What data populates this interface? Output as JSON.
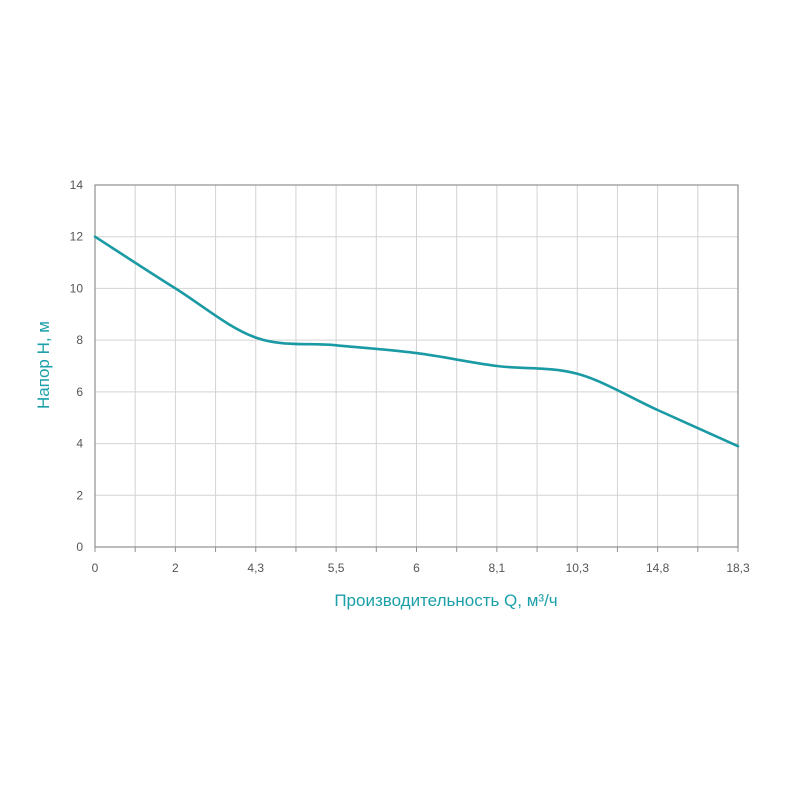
{
  "chart_data": {
    "type": "line",
    "categories": [
      "0",
      "2",
      "4,3",
      "5,5",
      "6",
      "8,1",
      "10,3",
      "14,8",
      "18,3"
    ],
    "series": [
      {
        "values": [
          12,
          10,
          8.1,
          7.8,
          7.5,
          7.0,
          6.7,
          5.3,
          3.9
        ],
        "color": "#1a9aa4"
      }
    ],
    "xlabel": "Производительность Q, м³/ч",
    "ylabel": "Напор H, м",
    "ylim": [
      0,
      14
    ],
    "yticks": [
      0,
      2,
      4,
      6,
      8,
      10,
      12,
      14
    ],
    "grid": true,
    "colors": {
      "axis_titles": "#1ba0a9",
      "grid": "#d3d3d3",
      "axes": "#909090",
      "tick_labels": "#555555"
    }
  }
}
